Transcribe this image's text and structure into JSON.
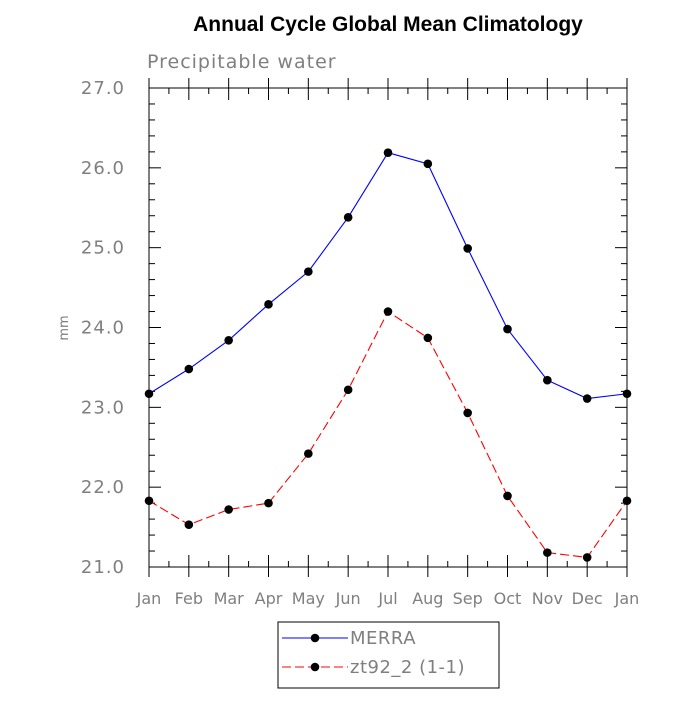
{
  "chart_data": {
    "type": "line",
    "title": "Annual Cycle Global Mean Climatology",
    "subtitle": "Precipitable water",
    "ylabel": "mm",
    "xlabel": "",
    "categories": [
      "Jan",
      "Feb",
      "Mar",
      "Apr",
      "May",
      "Jun",
      "Jul",
      "Aug",
      "Sep",
      "Oct",
      "Nov",
      "Dec",
      "Jan"
    ],
    "ylim": [
      21.0,
      27.0
    ],
    "yticks": [
      "21.0",
      "22.0",
      "23.0",
      "24.0",
      "25.0",
      "26.0",
      "27.0"
    ],
    "ytick_values": [
      21.0,
      22.0,
      23.0,
      24.0,
      25.0,
      26.0,
      27.0
    ],
    "yminor_step": 0.2,
    "grid": false,
    "legend_position": "bottom-center",
    "series": [
      {
        "name": "MERRA",
        "color": "#0000ff",
        "line_style": "solid",
        "marker": "filled-circle",
        "values": [
          23.17,
          23.48,
          23.84,
          24.29,
          24.7,
          25.38,
          26.19,
          26.05,
          24.99,
          23.98,
          23.34,
          23.11,
          23.17
        ]
      },
      {
        "name": "zt92_2 (1-1)",
        "color": "#ff0000",
        "line_style": "dashed",
        "marker": "filled-circle",
        "values": [
          21.83,
          21.53,
          21.72,
          21.8,
          22.42,
          23.22,
          24.2,
          23.87,
          22.93,
          21.89,
          21.18,
          21.12,
          21.83
        ]
      }
    ]
  }
}
